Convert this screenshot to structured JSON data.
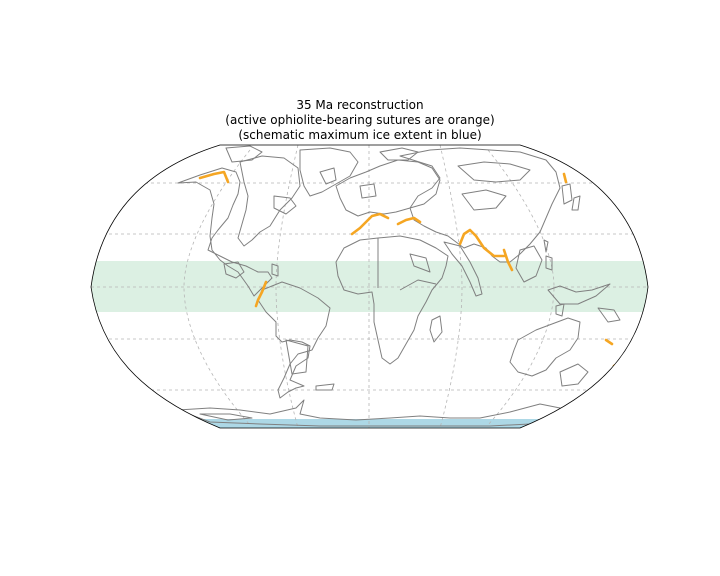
{
  "title": {
    "line1": "35 Ma reconstruction",
    "line2": "(active ophiolite-bearing sutures are orange)",
    "line3": "(schematic maximum ice extent in blue)"
  },
  "map": {
    "projection": "Robinson",
    "age_ma": 35,
    "colors": {
      "coastline": "#808080",
      "suture": "#f5a623",
      "ice": "#add8e6",
      "tropical_band": "#dcf0e3",
      "graticule": "#b5b5b5",
      "frame": "#000000"
    },
    "layers": [
      "tropical-band",
      "graticule",
      "coastlines",
      "sutures",
      "ice-extent"
    ]
  }
}
